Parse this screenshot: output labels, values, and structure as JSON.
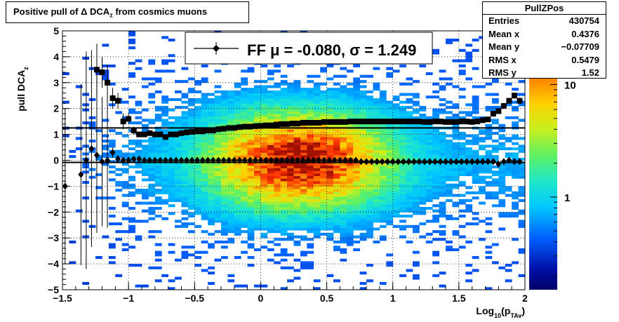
{
  "title": {
    "main": "Positive pull of ",
    "delta": "Δ",
    "dca": " DCA",
    "sub": "z",
    "rest": " from cosmics muons"
  },
  "stats": {
    "name": "PullZPos",
    "rows": [
      {
        "label": "Entries",
        "value": "430754"
      },
      {
        "label": "Mean x",
        "value": "0.4376"
      },
      {
        "label": "Mean y",
        "value": "−0.07709"
      },
      {
        "label": "RMS x",
        "value": "0.5479"
      },
      {
        "label": "RMS y",
        "value": "1.52"
      }
    ]
  },
  "legend": {
    "text": "FF μ = -0.080, σ =   1.249"
  },
  "colorbar": {
    "labels": [
      {
        "text": "10",
        "value": 10
      },
      {
        "text": "1",
        "value": 1
      }
    ],
    "range": [
      0.15,
      30
    ],
    "scale": "log"
  },
  "chart_data": {
    "type": "heatmap",
    "title": "Positive pull of Δ DCAz from cosmics muons",
    "xlabel": "Log10(pTAv)",
    "ylabel": "pull DCAz",
    "xlim": [
      -1.5,
      2.0
    ],
    "ylim": [
      -5,
      5
    ],
    "xticks": [
      "−1.5",
      "−1",
      "−0.5",
      "0",
      "0.5",
      "1",
      "1.5",
      "2"
    ],
    "yticks": [
      "−5",
      "−4",
      "−3",
      "−2",
      "−1",
      "0",
      "1",
      "2",
      "3",
      "4",
      "5"
    ],
    "grid": true,
    "z_scale": "log",
    "series": [
      {
        "marker": "square",
        "x": [
          -1.24,
          -1.2,
          -1.16,
          -1.12,
          -1.08,
          -1.04,
          -1.0,
          -0.96,
          -0.92,
          -0.88,
          -0.84,
          -0.8,
          -0.76,
          -0.72,
          -0.68,
          -0.64,
          -0.6,
          -0.56,
          -0.52,
          -0.48,
          -0.44,
          -0.4,
          -0.36,
          -0.32,
          -0.28,
          -0.24,
          -0.2,
          -0.16,
          -0.12,
          -0.08,
          -0.04,
          0.0,
          0.04,
          0.08,
          0.12,
          0.16,
          0.2,
          0.24,
          0.28,
          0.32,
          0.36,
          0.4,
          0.44,
          0.48,
          0.52,
          0.56,
          0.6,
          0.64,
          0.68,
          0.72,
          0.76,
          0.8,
          0.84,
          0.88,
          0.92,
          0.96,
          1.0,
          1.04,
          1.08,
          1.12,
          1.16,
          1.2,
          1.24,
          1.28,
          1.32,
          1.36,
          1.4,
          1.44,
          1.48,
          1.52,
          1.56,
          1.6,
          1.64,
          1.68,
          1.72,
          1.76,
          1.8,
          1.84,
          1.88,
          1.92,
          1.96
        ],
        "y": [
          3.5,
          3.4,
          3.0,
          2.4,
          2.3,
          1.5,
          1.6,
          1.15,
          1.0,
          1.0,
          1.05,
          1.0,
          1.0,
          0.9,
          1.0,
          1.0,
          1.05,
          1.08,
          1.1,
          1.12,
          1.12,
          1.15,
          1.15,
          1.2,
          1.22,
          1.25,
          1.25,
          1.28,
          1.3,
          1.3,
          1.32,
          1.33,
          1.35,
          1.35,
          1.38,
          1.4,
          1.4,
          1.42,
          1.42,
          1.45,
          1.45,
          1.45,
          1.45,
          1.48,
          1.48,
          1.48,
          1.48,
          1.48,
          1.5,
          1.5,
          1.5,
          1.5,
          1.5,
          1.5,
          1.5,
          1.5,
          1.5,
          1.5,
          1.5,
          1.5,
          1.5,
          1.5,
          1.48,
          1.48,
          1.5,
          1.5,
          1.48,
          1.48,
          1.48,
          1.5,
          1.5,
          1.48,
          1.5,
          1.55,
          1.58,
          1.8,
          1.9,
          2.1,
          2.3,
          2.5,
          2.3
        ],
        "yerr": [
          1.0,
          0.6,
          0.7,
          0.4,
          0.3,
          0.3,
          0.2,
          0.15,
          0.1,
          0.1,
          0.08,
          0.06,
          0.05,
          0.04,
          0.03,
          0.03,
          0.02,
          0.02,
          0.02,
          0.02,
          0.02,
          0.02,
          0.02,
          0.02,
          0.02,
          0.02,
          0.02,
          0.02,
          0.02,
          0.02,
          0.02,
          0.02,
          0.02,
          0.02,
          0.02,
          0.02,
          0.02,
          0.02,
          0.02,
          0.02,
          0.02,
          0.02,
          0.02,
          0.02,
          0.02,
          0.02,
          0.02,
          0.02,
          0.02,
          0.02,
          0.02,
          0.02,
          0.02,
          0.02,
          0.02,
          0.02,
          0.02,
          0.02,
          0.02,
          0.02,
          0.02,
          0.02,
          0.02,
          0.02,
          0.02,
          0.02,
          0.02,
          0.02,
          0.02,
          0.02,
          0.02,
          0.02,
          0.03,
          0.03,
          0.04,
          0.05,
          0.06,
          0.08,
          0.1,
          0.12,
          0.12
        ]
      },
      {
        "marker": "diamond",
        "x": [
          -1.48,
          -1.36,
          -1.32,
          -1.28,
          -1.24,
          -1.2,
          -1.16,
          -1.12,
          -1.08,
          -1.04,
          -1.0,
          -0.96,
          -0.92,
          -0.88,
          -0.84,
          -0.8,
          -0.76,
          -0.72,
          -0.68,
          -0.64,
          -0.6,
          -0.56,
          -0.52,
          -0.48,
          -0.44,
          -0.4,
          -0.36,
          -0.32,
          -0.28,
          -0.24,
          -0.2,
          -0.16,
          -0.12,
          -0.08,
          -0.04,
          0.0,
          0.04,
          0.08,
          0.12,
          0.16,
          0.2,
          0.24,
          0.28,
          0.32,
          0.36,
          0.4,
          0.44,
          0.48,
          0.52,
          0.56,
          0.6,
          0.64,
          0.68,
          0.72,
          0.76,
          0.8,
          0.84,
          0.88,
          0.92,
          0.96,
          1.0,
          1.04,
          1.08,
          1.12,
          1.16,
          1.2,
          1.24,
          1.28,
          1.32,
          1.36,
          1.4,
          1.44,
          1.48,
          1.52,
          1.56,
          1.6,
          1.64,
          1.68,
          1.72,
          1.76,
          1.8,
          1.84,
          1.88,
          1.92,
          1.96
        ],
        "y": [
          -1.0,
          -0.55,
          0.0,
          0.45,
          0.2,
          -0.05,
          0.0,
          0.3,
          0.05,
          0.0,
          0.0,
          0.05,
          0.05,
          0.0,
          0.0,
          0.0,
          0.0,
          0.0,
          0.0,
          0.0,
          0.0,
          0.0,
          0.0,
          0.0,
          0.0,
          0.0,
          0.0,
          0.0,
          0.0,
          0.0,
          0.0,
          0.0,
          0.0,
          0.0,
          0.0,
          0.0,
          0.0,
          0.0,
          0.0,
          0.0,
          0.0,
          0.0,
          0.0,
          0.0,
          0.0,
          0.0,
          0.0,
          0.0,
          0.0,
          0.0,
          0.0,
          0.0,
          0.0,
          0.0,
          -0.05,
          -0.05,
          -0.05,
          -0.05,
          -0.05,
          -0.05,
          -0.05,
          -0.05,
          -0.05,
          -0.05,
          -0.05,
          -0.05,
          -0.05,
          -0.05,
          -0.05,
          -0.05,
          -0.05,
          -0.05,
          -0.05,
          -0.05,
          -0.05,
          -0.05,
          -0.05,
          -0.05,
          -0.05,
          -0.05,
          -0.15,
          -0.05,
          0.0,
          -0.05,
          -0.05
        ],
        "yerr": [
          3.0,
          3.5,
          4.2,
          3.8,
          3.0,
          2.5,
          2.6,
          0.2,
          0.15,
          0.1,
          0.08,
          0.05,
          0.05,
          0.05,
          0.05,
          0.05,
          0.05,
          0.05,
          0.05,
          0.05,
          0.05,
          0.05,
          0.05,
          0.05,
          0.05,
          0.05,
          0.05,
          0.05,
          0.05,
          0.05,
          0.05,
          0.05,
          0.05,
          0.05,
          0.05,
          0.05,
          0.05,
          0.05,
          0.05,
          0.05,
          0.05,
          0.05,
          0.05,
          0.05,
          0.05,
          0.05,
          0.05,
          0.05,
          0.05,
          0.05,
          0.05,
          0.05,
          0.05,
          0.05,
          0.05,
          0.05,
          0.05,
          0.05,
          0.05,
          0.05,
          0.05,
          0.05,
          0.05,
          0.05,
          0.05,
          0.05,
          0.05,
          0.05,
          0.05,
          0.05,
          0.05,
          0.05,
          0.05,
          0.05,
          0.05,
          0.05,
          0.05,
          0.05,
          0.05,
          0.05,
          0.05,
          0.05,
          0.05,
          0.05,
          0.05
        ]
      }
    ],
    "hlines": [
      1.249,
      -0.08
    ]
  },
  "axes": {
    "ylabel_main": "pull DCA",
    "ylabel_sub": "z",
    "xlabel_main": "Log",
    "xlabel_sub1": "10",
    "xlabel_mid": "(p",
    "xlabel_sub2": "TAv",
    "xlabel_end": ")"
  },
  "colors": {
    "marker": "#000000",
    "grid": "#000000"
  }
}
